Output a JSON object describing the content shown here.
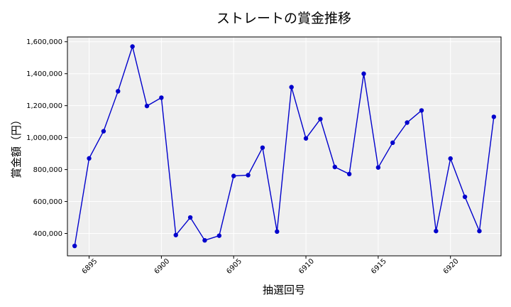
{
  "chart_data": {
    "type": "line",
    "title": "ストレートの賞金推移",
    "xlabel": "抽選回号",
    "ylabel": "賞金額（円）",
    "x_ticks": [
      6895,
      6900,
      6905,
      6910,
      6915,
      6920
    ],
    "x_tick_labels": [
      "6895",
      "6900",
      "6905",
      "6910",
      "6915",
      "6920"
    ],
    "y_ticks": [
      400000,
      600000,
      800000,
      1000000,
      1200000,
      1400000,
      1600000
    ],
    "y_tick_labels": [
      "400,000",
      "600,000",
      "800,000",
      "1,000,000",
      "1,200,000",
      "1,400,000",
      "1,600,000"
    ],
    "xlim": [
      6893.5,
      6923.5
    ],
    "ylim": [
      260000,
      1630000
    ],
    "grid": true,
    "colors": {
      "line": "#0000cc",
      "marker": "#0000cc",
      "plot_bg": "#efefef",
      "grid": "#ffffff"
    },
    "series": [
      {
        "x": [
          6894,
          6895,
          6896,
          6897,
          6898,
          6899,
          6900,
          6901,
          6902,
          6903,
          6904,
          6905,
          6906,
          6907,
          6908,
          6909,
          6910,
          6911,
          6912,
          6913,
          6914,
          6915,
          6916,
          6917,
          6918,
          6919,
          6920,
          6921,
          6922,
          6923
        ],
        "y": [
          322000,
          870000,
          1040000,
          1290000,
          1570000,
          1198000,
          1250000,
          390000,
          500000,
          357000,
          386000,
          760000,
          765000,
          937000,
          412000,
          1316000,
          995000,
          1116000,
          816000,
          772000,
          1400000,
          813000,
          968000,
          1094000,
          1170000,
          415000,
          869000,
          629000,
          415000,
          1130000
        ]
      }
    ]
  }
}
